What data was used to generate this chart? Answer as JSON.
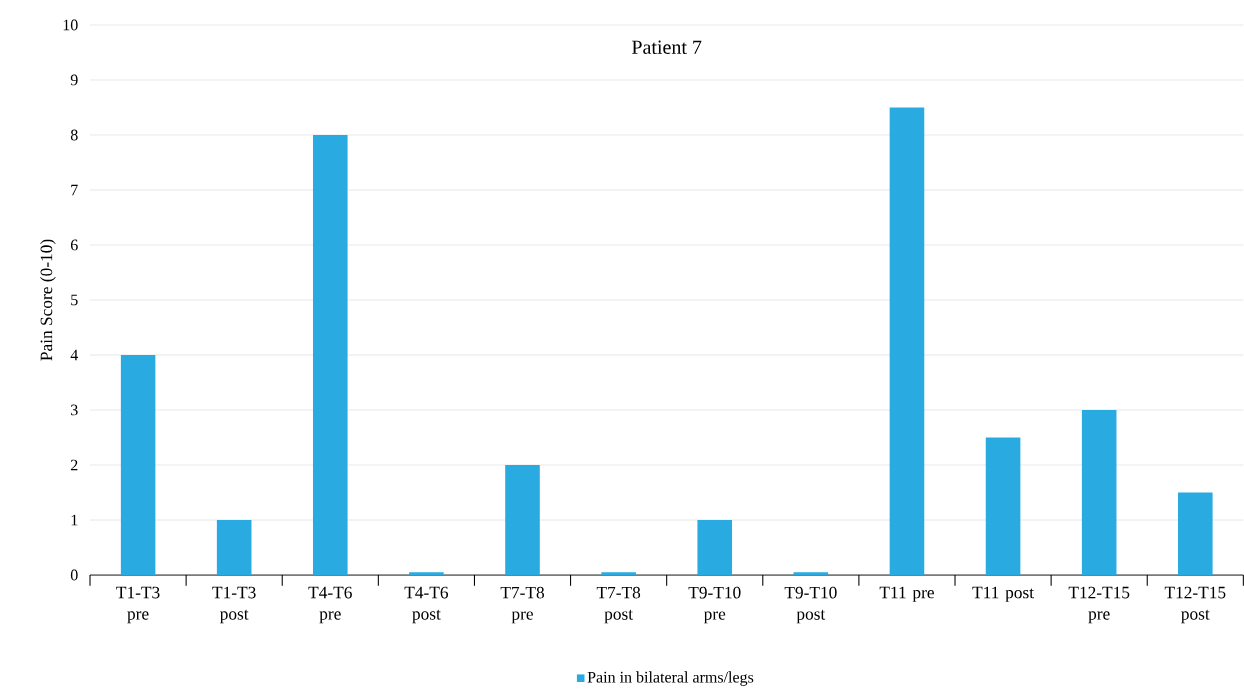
{
  "chart_data": {
    "type": "bar",
    "title": "Patient 7",
    "ylabel": "Pain Score (0-10)",
    "categories": [
      "T1-T3 pre",
      "T1-T3 post",
      "T4-T6 pre",
      "T4-T6 post",
      "T7-T8 pre",
      "T7-T8 post",
      "T9-T10 pre",
      "T9-T10 post",
      "T11 pre",
      "T11 post",
      "T12-T15 pre",
      "T12-T15 post"
    ],
    "series": [
      {
        "name": "Pain in bilateral arms/legs",
        "color": "#29abe2",
        "values": [
          4,
          1,
          8,
          0.05,
          2,
          0.05,
          1,
          0.05,
          8.5,
          2.5,
          3,
          1.5
        ]
      }
    ],
    "ylim": [
      0,
      10
    ],
    "yticks": [
      0,
      1,
      2,
      3,
      4,
      5,
      6,
      7,
      8,
      9,
      10
    ],
    "grid": "y",
    "legend": "bottom"
  }
}
